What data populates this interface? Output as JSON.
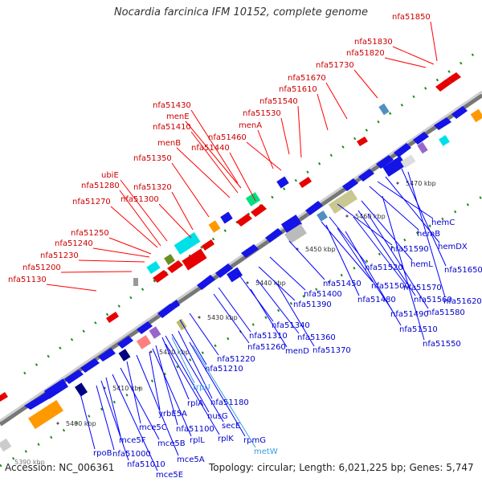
{
  "title": "Nocardia farcinica IFM 10152, complete genome",
  "footer": {
    "accession": "Accession: NC_006361",
    "topology": "Topology: circular; Length: 6,021,225 bp; Genes: 5,747"
  },
  "axis_labels": [
    "5400 kbp",
    "5410 kbp",
    "5420 kbp",
    "5430 kbp",
    "5440 kbp",
    "5450 kbp",
    "5460 kbp",
    "5470 kbp"
  ],
  "edge_label": "5390 kbp",
  "upper_genes": [
    "nfa51850",
    "nfa51830",
    "nfa51820",
    "nfa51730",
    "nfa51670",
    "nfa51610",
    "nfa51540",
    "nfa51530",
    "nfa51430",
    "menE",
    "nfa51410",
    "nfa51460",
    "menA",
    "nfa51440",
    "menB",
    "nfa51350",
    "ubiE",
    "nfa51280",
    "nfa51320",
    "nfa51300",
    "nfa51270",
    "nfa51250",
    "nfa51240",
    "nfa51230",
    "nfa51200",
    "nfa51130"
  ],
  "lower_genes": [
    "hemC",
    "hemB",
    "hemDX",
    "nfa51590",
    "hemL",
    "nfa51650",
    "nfa51520",
    "nfa51570",
    "nfa51450",
    "nfa51500",
    "nfa51560",
    "nfa51620",
    "nfa51400",
    "nfa51480",
    "nfa51580",
    "nfa51390",
    "nfa51490",
    "nfa51510",
    "nfa51550",
    "nfa51340",
    "nfa51310",
    "nfa51360",
    "nfa51260",
    "menD",
    "nfa51370",
    "nfa51220",
    "nfa51210",
    "nfa51180",
    "rplA",
    "nfa51100",
    "nusG",
    "secE",
    "yrbE5A",
    "mce5C",
    "rplL",
    "rplK",
    "rpmG",
    "mce5F",
    "mce5B",
    "rpoB",
    "nfa51000",
    "mce5A",
    "nfa51010",
    "mce5E"
  ],
  "rna_genes": [
    "trpU",
    "metW"
  ],
  "colors": {
    "cds_label": "#0000cc",
    "rna_label": "#3aa0e0",
    "upper_label": "#cc0000",
    "backbone": "#999999",
    "gc_dots": "#1e8a1e",
    "cds_arrow": "#1414e6",
    "reverse_arrow": "#e60000"
  }
}
